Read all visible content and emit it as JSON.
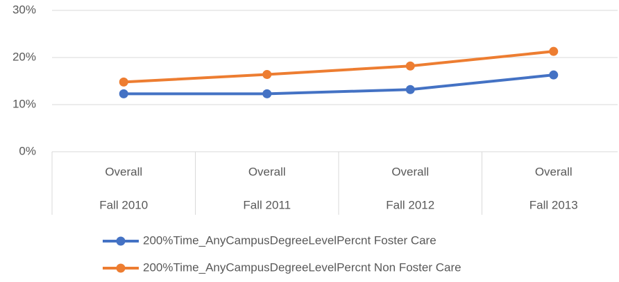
{
  "chart_data": {
    "type": "line",
    "categories": [
      "Fall 2010",
      "Fall 2011",
      "Fall 2012",
      "Fall 2013"
    ],
    "category_groups": [
      "Overall",
      "Overall",
      "Overall",
      "Overall"
    ],
    "series": [
      {
        "name": "200%Time_AnyCampusDegreeLevelPercnt Foster Care",
        "color": "#4472c4",
        "values": [
          12.3,
          12.3,
          13.2,
          16.3
        ]
      },
      {
        "name": "200%Time_AnyCampusDegreeLevelPercnt Non Foster Care",
        "color": "#ed7d31",
        "values": [
          14.8,
          16.4,
          18.2,
          21.3
        ]
      }
    ],
    "ylim": [
      0,
      30
    ],
    "yticks": [
      {
        "value": 0,
        "label": "0%"
      },
      {
        "value": 10,
        "label": "10%"
      },
      {
        "value": 20,
        "label": "20%"
      },
      {
        "value": 30,
        "label": "30%"
      }
    ],
    "grid": true,
    "legend": "bottom"
  }
}
